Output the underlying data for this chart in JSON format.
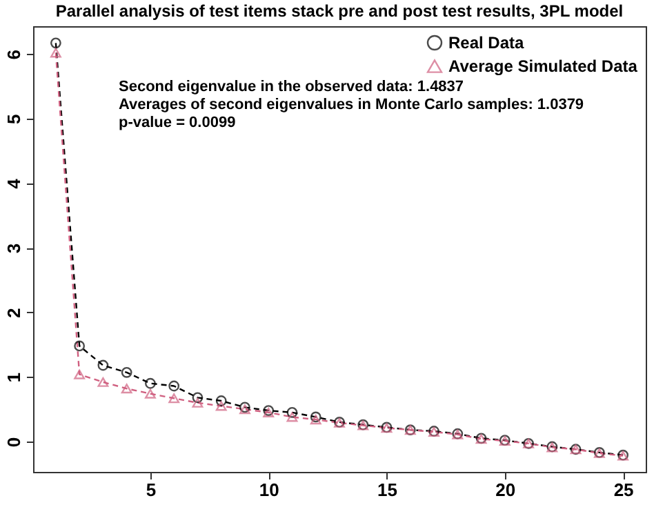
{
  "chart_data": {
    "type": "line",
    "title": "Parallel analysis of test items stack pre and post test results, 3PL model",
    "x": [
      1,
      2,
      3,
      4,
      5,
      6,
      7,
      8,
      9,
      10,
      11,
      12,
      13,
      14,
      15,
      16,
      17,
      18,
      19,
      20,
      21,
      22,
      23,
      24,
      25
    ],
    "series": [
      {
        "name": "Real Data",
        "color": "#000000",
        "marker": "circle",
        "values": [
          6.17,
          1.48,
          1.18,
          1.07,
          0.9,
          0.86,
          0.68,
          0.63,
          0.53,
          0.48,
          0.45,
          0.38,
          0.3,
          0.26,
          0.22,
          0.18,
          0.16,
          0.12,
          0.05,
          0.02,
          -0.03,
          -0.08,
          -0.12,
          -0.17,
          -0.21
        ]
      },
      {
        "name": "Average Simulated Data",
        "color": "#d06080",
        "marker": "triangle",
        "values": [
          6.02,
          1.04,
          0.92,
          0.82,
          0.74,
          0.67,
          0.6,
          0.55,
          0.5,
          0.45,
          0.38,
          0.34,
          0.29,
          0.25,
          0.21,
          0.18,
          0.15,
          0.11,
          0.04,
          0.01,
          -0.03,
          -0.09,
          -0.12,
          -0.18,
          -0.22
        ]
      }
    ],
    "annotations": [
      "Second eigenvalue in the observed data: 1.4837",
      "Averages of second eigenvalues in Monte Carlo samples: 1.0379",
      "p-value = 0.0099"
    ],
    "xlim": [
      0.04,
      25.96
    ],
    "xticks": [
      5,
      10,
      15,
      20,
      25
    ],
    "ylim": [
      -0.47,
      6.43
    ],
    "yticks": [
      0,
      1,
      2,
      3,
      4,
      5,
      6
    ],
    "line_style": "dashed",
    "legend": "top right",
    "grid": false
  }
}
